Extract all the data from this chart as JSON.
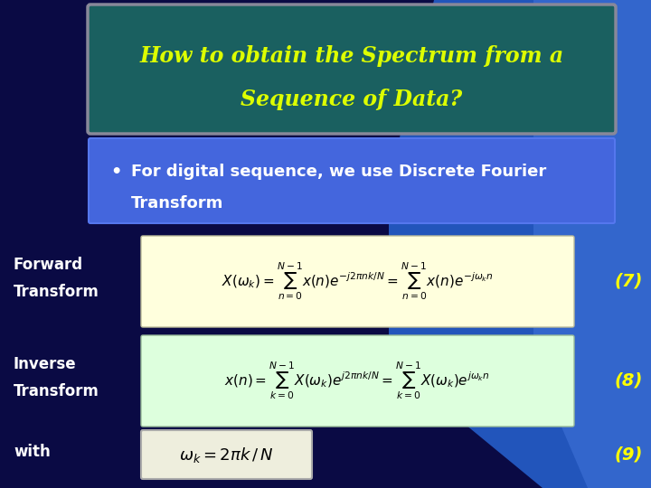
{
  "title_line1": "How to obtain the Spectrum from a",
  "title_line2": "Sequence of Data?",
  "title_color": "#DDFF00",
  "title_bg_color": "#1a6060",
  "title_border_color": "#888899",
  "bullet_text_line1": "For digital sequence, we use Discrete Fourier",
  "bullet_text_line2": "Transform",
  "bullet_bg_color": "#4466dd",
  "bullet_text_color": "#ffffff",
  "bg_color": "#0a0a44",
  "bg_color2": "#1a1a66",
  "accent_color": "#3355cc",
  "label_forward": "Forward\nTransform",
  "label_inverse": "Inverse\nTransform",
  "label_with": "with",
  "label_color": "#ffffff",
  "eq_forward_bg": "#ffffdd",
  "eq_inverse_bg": "#ddffdd",
  "eq_with_bg": "#eeeedd",
  "eq_with_border": "#aaaaaa",
  "num7": "(7)",
  "num8": "(8)",
  "num9": "(9)",
  "num_color": "#FFFF00"
}
